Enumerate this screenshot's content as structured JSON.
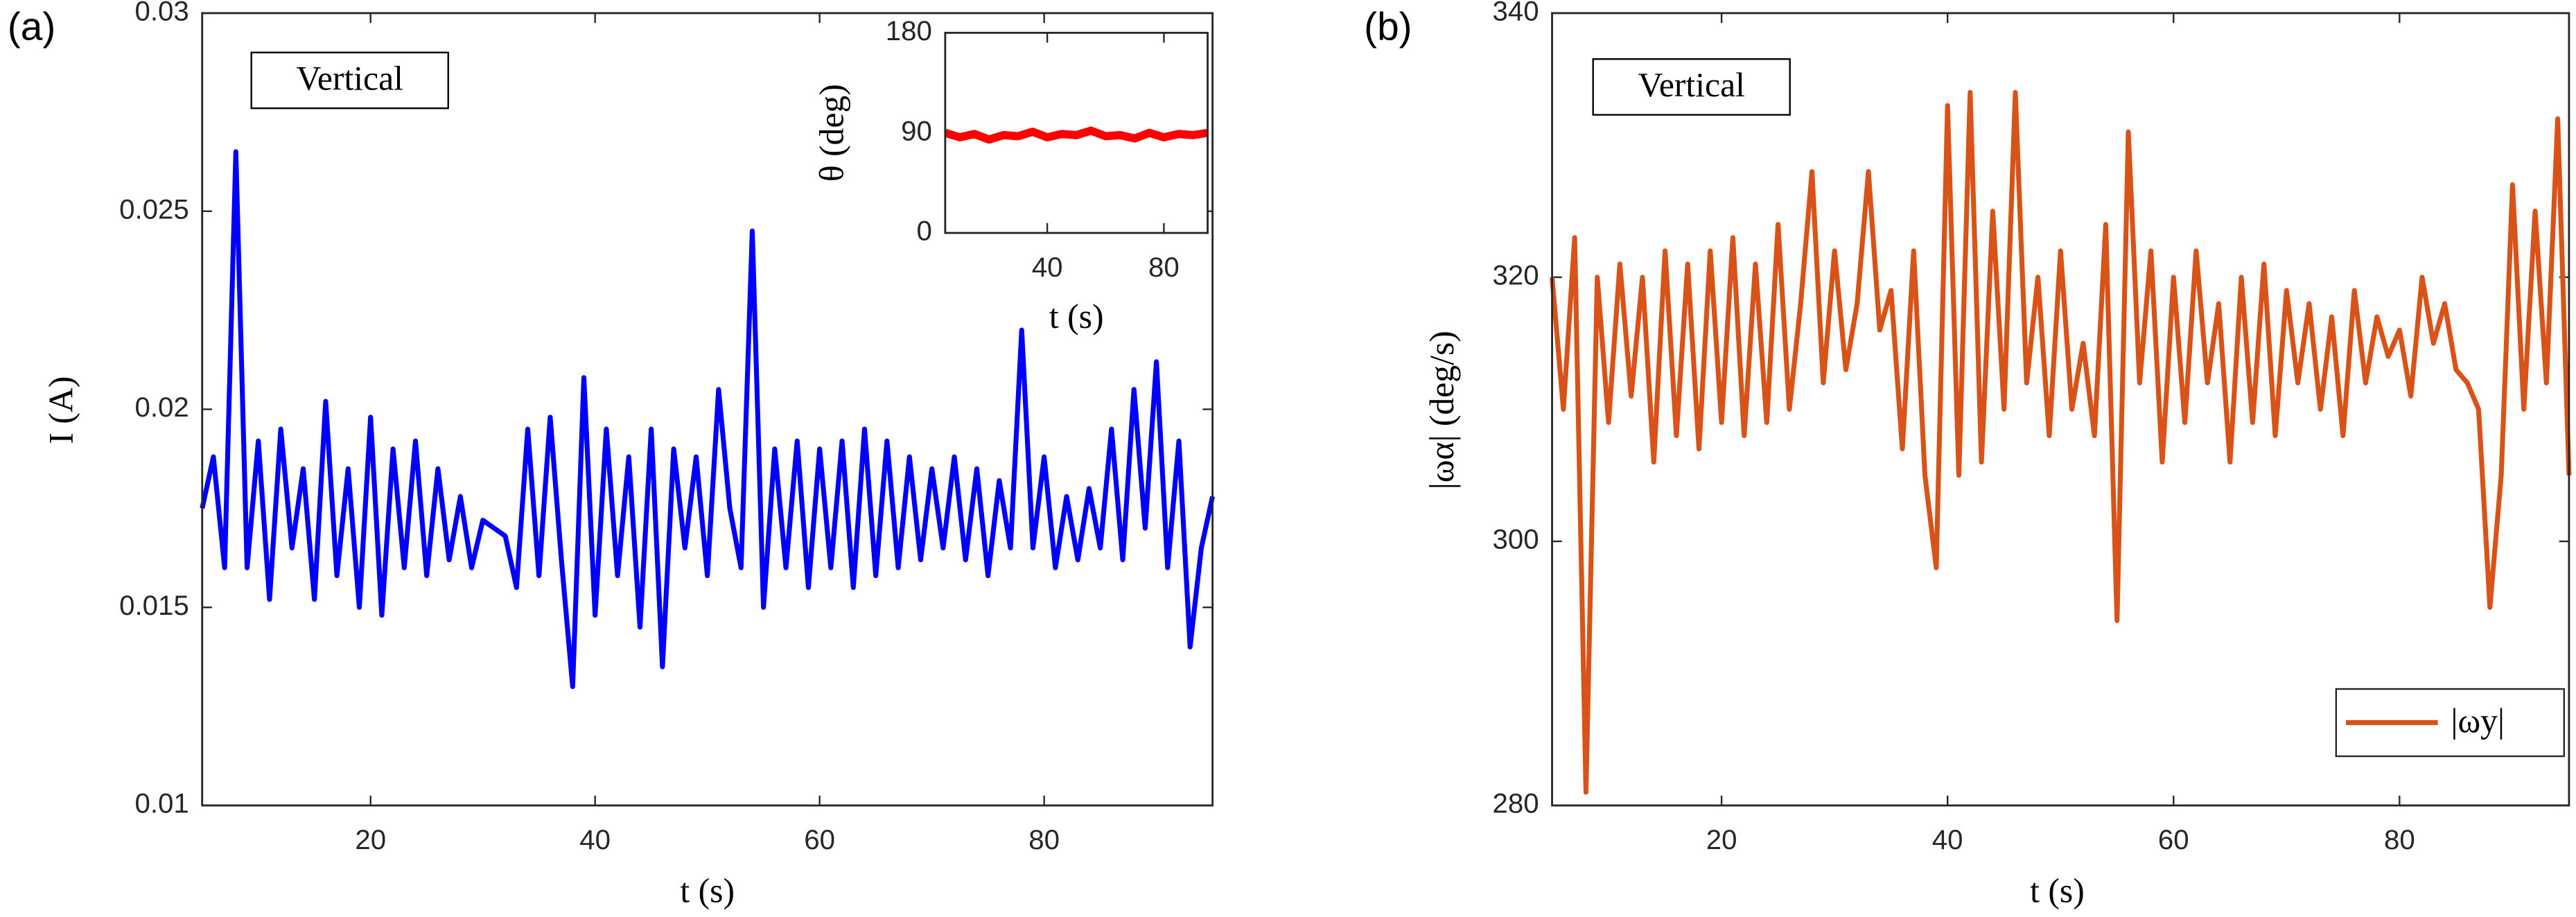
{
  "chart_data": [
    {
      "type": "line",
      "panel_label": "(a)",
      "annotation": "Vertical",
      "x_label": "t (s)",
      "y_label": "I (A)",
      "color": "#0000ff",
      "xlim": [
        5,
        95
      ],
      "xticks": [
        20,
        40,
        60,
        80
      ],
      "ylim": [
        0.01,
        0.03
      ],
      "yticks": [
        0.01,
        0.015,
        0.02,
        0.025,
        0.03
      ],
      "x": [
        5,
        6,
        7,
        8,
        9,
        10,
        11,
        12,
        13,
        14,
        15,
        16,
        17,
        18,
        19,
        20,
        21,
        22,
        23,
        24,
        25,
        26,
        27,
        28,
        29,
        30,
        31,
        32,
        33,
        34,
        35,
        36,
        37,
        38,
        39,
        40,
        41,
        42,
        43,
        44,
        45,
        46,
        47,
        48,
        49,
        50,
        51,
        52,
        53,
        54,
        55,
        56,
        57,
        58,
        59,
        60,
        61,
        62,
        63,
        64,
        65,
        66,
        67,
        68,
        69,
        70,
        71,
        72,
        73,
        74,
        75,
        76,
        77,
        78,
        79,
        80,
        81,
        82,
        83,
        84,
        85,
        86,
        87,
        88,
        89,
        90,
        91,
        92,
        93,
        94,
        95
      ],
      "values": [
        0.0175,
        0.0188,
        0.016,
        0.0265,
        0.016,
        0.0192,
        0.0152,
        0.0195,
        0.0165,
        0.0185,
        0.0152,
        0.0202,
        0.0158,
        0.0185,
        0.015,
        0.0198,
        0.0148,
        0.019,
        0.016,
        0.0192,
        0.0158,
        0.0185,
        0.0162,
        0.0178,
        0.016,
        0.0172,
        0.017,
        0.0168,
        0.0155,
        0.0195,
        0.0158,
        0.0198,
        0.0162,
        0.013,
        0.0208,
        0.0148,
        0.0195,
        0.0158,
        0.0188,
        0.0145,
        0.0195,
        0.0135,
        0.019,
        0.0165,
        0.0188,
        0.0158,
        0.0205,
        0.0175,
        0.016,
        0.0245,
        0.015,
        0.019,
        0.016,
        0.0192,
        0.0155,
        0.019,
        0.016,
        0.0192,
        0.0155,
        0.0195,
        0.0158,
        0.0192,
        0.016,
        0.0188,
        0.0162,
        0.0185,
        0.0165,
        0.0188,
        0.0162,
        0.0185,
        0.0158,
        0.0182,
        0.0165,
        0.022,
        0.0165,
        0.0188,
        0.016,
        0.0178,
        0.0162,
        0.018,
        0.0165,
        0.0195,
        0.0162,
        0.0205,
        0.017,
        0.0212,
        0.016,
        0.0192,
        0.014,
        0.0165,
        0.0178
      ]
    },
    {
      "type": "line",
      "panel_label": "(b)",
      "annotation": "Vertical",
      "x_label": "t (s)",
      "y_label": "|ωα| (deg/s)",
      "legend": "lower right",
      "xlim": [
        5,
        95
      ],
      "xticks": [
        20,
        40,
        60,
        80
      ],
      "ylim": [
        280,
        340
      ],
      "yticks": [
        280,
        300,
        320,
        340
      ],
      "x": [
        5,
        6,
        7,
        8,
        9,
        10,
        11,
        12,
        13,
        14,
        15,
        16,
        17,
        18,
        19,
        20,
        21,
        22,
        23,
        24,
        25,
        26,
        27,
        28,
        29,
        30,
        31,
        32,
        33,
        34,
        35,
        36,
        37,
        38,
        39,
        40,
        41,
        42,
        43,
        44,
        45,
        46,
        47,
        48,
        49,
        50,
        51,
        52,
        53,
        54,
        55,
        56,
        57,
        58,
        59,
        60,
        61,
        62,
        63,
        64,
        65,
        66,
        67,
        68,
        69,
        70,
        71,
        72,
        73,
        74,
        75,
        76,
        77,
        78,
        79,
        80,
        81,
        82,
        83,
        84,
        85,
        86,
        87,
        88,
        89,
        90,
        91,
        92,
        93,
        94,
        95
      ],
      "series": [
        {
          "name": "|ωy|",
          "color": "#d95319",
          "values": [
            320,
            310,
            323,
            281,
            320,
            309,
            321,
            311,
            320,
            306,
            322,
            308,
            321,
            307,
            322,
            309,
            323,
            308,
            321,
            309,
            324,
            310,
            318,
            328,
            312,
            322,
            313,
            318,
            328,
            316,
            319,
            307,
            322,
            305,
            298,
            333,
            305,
            334,
            306,
            325,
            310,
            334,
            312,
            320,
            308,
            322,
            310,
            315,
            308,
            324,
            294,
            331,
            312,
            322,
            306,
            320,
            309,
            322,
            312,
            318,
            306,
            320,
            309,
            321,
            308,
            319,
            312,
            318,
            310,
            317,
            308,
            319,
            312,
            317,
            314,
            316,
            311,
            320,
            315,
            318,
            313,
            312,
            310,
            295,
            305,
            327,
            310,
            325,
            312,
            332,
            305
          ]
        }
      ]
    },
    {
      "type": "line",
      "x_label": "t (s)",
      "y_label": "θ (deg)",
      "color": "#ff0000",
      "xlim": [
        5,
        95
      ],
      "xticks": [
        40,
        80
      ],
      "ylim": [
        0,
        180
      ],
      "yticks": [
        0,
        90,
        180
      ],
      "x": [
        5,
        10,
        15,
        20,
        25,
        30,
        35,
        40,
        45,
        50,
        55,
        60,
        65,
        70,
        75,
        80,
        85,
        90,
        95
      ],
      "values": [
        90,
        86,
        89,
        84,
        88,
        87,
        91,
        86,
        89,
        88,
        92,
        87,
        88,
        85,
        90,
        86,
        89,
        88,
        90
      ]
    }
  ]
}
